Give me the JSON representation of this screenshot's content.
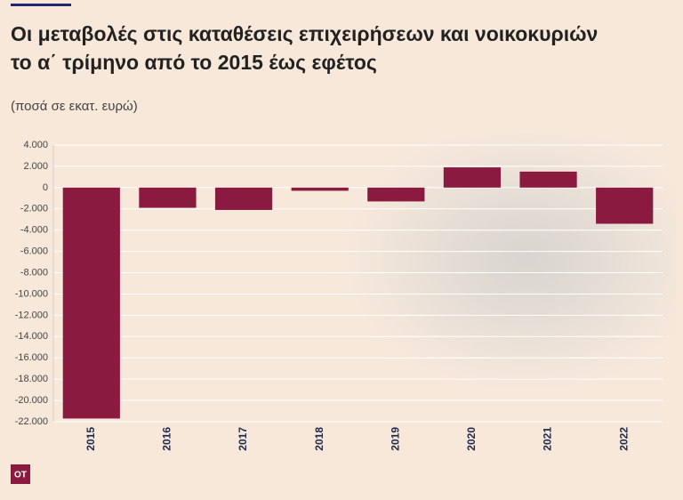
{
  "chart_data": {
    "type": "bar",
    "title": [
      "Οι μεταβολές στις καταθέσεις επιχειρήσεων και νοικοκυριών",
      "το α΄ τρίμηνο από το 2015 έως εφέτος"
    ],
    "subtitle": "(ποσά σε εκατ. ευρώ)",
    "categories": [
      "2015",
      "2016",
      "2017",
      "2018",
      "2019",
      "2020",
      "2021",
      "2022"
    ],
    "values": [
      -21700,
      -1900,
      -2100,
      -300,
      -1300,
      1900,
      1500,
      -3400
    ],
    "color": "#8b1a40",
    "ylim": [
      -22000,
      4000
    ],
    "yticks": [
      {
        "value": 4000,
        "label": "4.000"
      },
      {
        "value": 2000,
        "label": "2.000"
      },
      0,
      {
        "value": -2000,
        "label": "-2.000"
      },
      {
        "value": -4000,
        "label": "-4.000"
      },
      {
        "value": -6000,
        "label": "-6.000"
      },
      {
        "value": -8000,
        "label": "-8.000"
      },
      {
        "value": -10000,
        "label": "-10.000"
      },
      {
        "value": -12000,
        "label": "-12.000"
      },
      {
        "value": -14000,
        "label": "-14.000"
      },
      {
        "value": -16000,
        "label": "-16.000"
      },
      {
        "value": -18000,
        "label": "-18.000"
      },
      {
        "value": -20000,
        "label": "-20.000"
      },
      {
        "value": -22000,
        "label": "-22.000"
      }
    ],
    "grid": true,
    "logo": "OT"
  }
}
